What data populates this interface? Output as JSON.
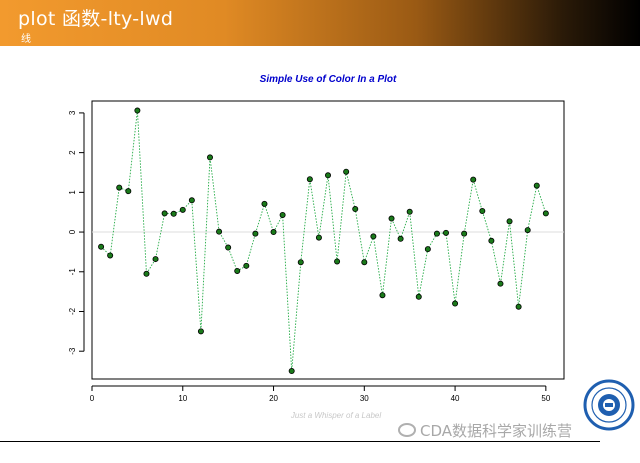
{
  "header": {
    "title": "plot 函数-lty-lwd",
    "subtitle": "线"
  },
  "watermark": {
    "text": "CDA数据科学家训练营"
  },
  "colors": {
    "title": "#0000cc",
    "line": "#22aa44",
    "point_fill": "#1a7a1a",
    "zero_line": "#dddddd",
    "label": "#c8c8c8"
  },
  "chart_data": {
    "type": "scatter",
    "title": "Simple Use of Color In a Plot",
    "xlabel": "Just a Whisper of a Label",
    "ylabel": "",
    "xlim": [
      0,
      52
    ],
    "ylim": [
      -3.7,
      3.3
    ],
    "xticks": [
      0,
      10,
      20,
      30,
      40,
      50
    ],
    "yticks": [
      -3,
      -2,
      -1,
      0,
      1,
      2,
      3
    ],
    "reference_line_y": 0,
    "line_style": "dotted",
    "series": [
      {
        "x": [
          1,
          2,
          3,
          4,
          5,
          6,
          7,
          8,
          9,
          10,
          11,
          12,
          13,
          14,
          15,
          16,
          17,
          18,
          19,
          20,
          21,
          22,
          23,
          24,
          25,
          26,
          27,
          28,
          29,
          30,
          31,
          32,
          33,
          34,
          35,
          36,
          37,
          38,
          39,
          40,
          41,
          42,
          43,
          44,
          45,
          46,
          47,
          48,
          49,
          50
        ],
        "values": [
          -0.37,
          -0.59,
          1.12,
          1.03,
          3.06,
          -1.05,
          -0.68,
          0.47,
          0.46,
          0.56,
          0.8,
          -2.5,
          1.88,
          0.01,
          -0.39,
          -0.98,
          -0.85,
          -0.04,
          0.71,
          0.0,
          0.43,
          -3.5,
          -0.76,
          1.33,
          -0.14,
          1.43,
          -0.74,
          1.52,
          0.58,
          -0.76,
          -0.11,
          -1.59,
          0.34,
          -0.17,
          0.51,
          -1.63,
          -0.43,
          -0.04,
          -0.02,
          -1.8,
          -0.04,
          1.32,
          0.53,
          -0.22,
          -1.3,
          0.27,
          -1.88,
          0.05,
          1.17,
          0.47
        ]
      }
    ]
  }
}
